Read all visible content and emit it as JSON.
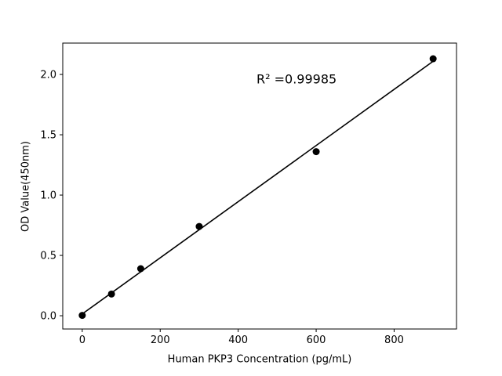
{
  "chart_data": {
    "type": "scatter",
    "title": "",
    "xlabel": "Human PKP3 Concentration (pg/mL)",
    "ylabel": "OD Value(450nm)",
    "annotation": "R² =0.99985",
    "r_squared": 0.99985,
    "points": {
      "x": [
        0,
        75,
        150,
        300,
        600,
        900
      ],
      "y": [
        0.003,
        0.18,
        0.39,
        0.74,
        1.36,
        2.13
      ]
    },
    "fit_line": {
      "slope": 0.002327,
      "intercept": 0.0147,
      "x_start": -8,
      "x_end": 908
    },
    "xticks": [
      0,
      200,
      400,
      600,
      800
    ],
    "xtick_labels": [
      "0",
      "200",
      "400",
      "600",
      "800"
    ],
    "yticks": [
      0.0,
      0.5,
      1.0,
      1.5,
      2.0
    ],
    "ytick_labels": [
      "0.0",
      "0.5",
      "1.0",
      "1.5",
      "2.0"
    ],
    "xlim": [
      -50,
      960
    ],
    "ylim": [
      -0.11,
      2.26
    ],
    "grid": false,
    "legend": "none",
    "marker_color": "#000000",
    "line_color": "#000000",
    "frame_color": "#000000",
    "background_color": "#ffffff"
  }
}
